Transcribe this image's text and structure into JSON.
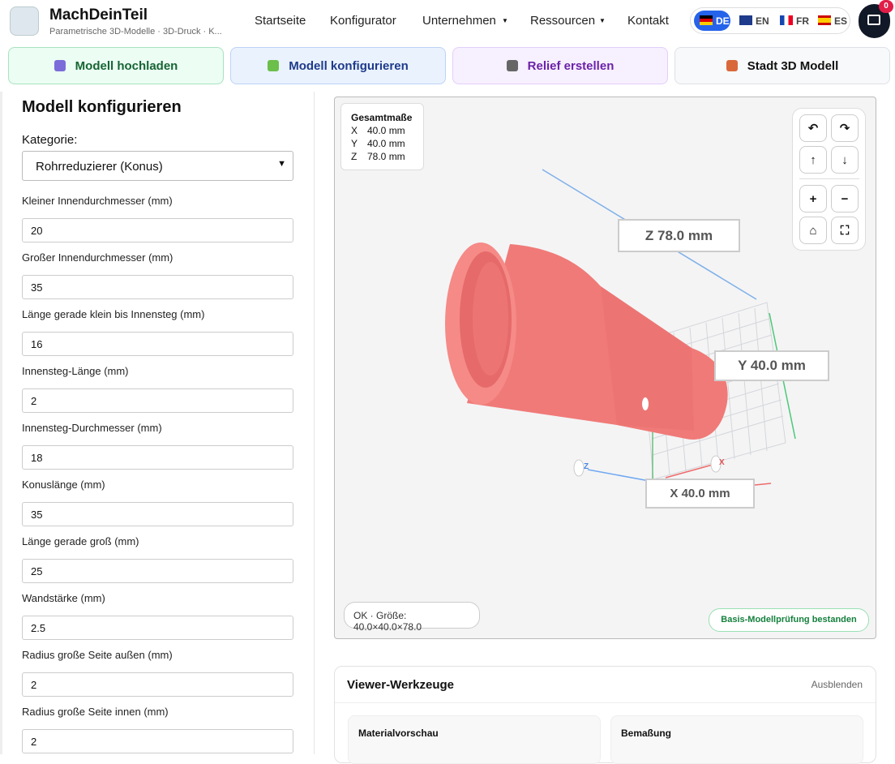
{
  "header": {
    "brand": "MachDeinTeil",
    "tagline": "Parametrische 3D-Modelle · 3D-Druck · K...",
    "nav": [
      "Startseite",
      "Konfigurator",
      "Unternehmen",
      "Ressourcen",
      "Kontakt"
    ],
    "languages": [
      "DE",
      "EN",
      "FR",
      "ES"
    ],
    "cart_count": "0"
  },
  "tabs": [
    "Modell hochladen",
    "Modell konfigurieren",
    "Relief erstellen",
    "Stadt 3D Modell"
  ],
  "form": {
    "title": "Modell konfigurieren",
    "category_label": "Kategorie:",
    "category": "Rohrreduzierer (Konus)",
    "fields": [
      {
        "label": "Kleiner Innendurchmesser (mm)",
        "value": "20"
      },
      {
        "label": "Großer Innendurchmesser (mm)",
        "value": "35"
      },
      {
        "label": "Länge gerade klein bis Innensteg (mm)",
        "value": "16"
      },
      {
        "label": "Innensteg-Länge (mm)",
        "value": "2"
      },
      {
        "label": "Innensteg-Durchmesser (mm)",
        "value": "18"
      },
      {
        "label": "Konuslänge (mm)",
        "value": "35"
      },
      {
        "label": "Länge gerade groß (mm)",
        "value": "25"
      },
      {
        "label": "Wandstärke (mm)",
        "value": "2.5"
      },
      {
        "label": "Radius große Seite außen (mm)",
        "value": "2"
      },
      {
        "label": "Radius große Seite innen (mm)",
        "value": "2"
      }
    ]
  },
  "viewer": {
    "dims_title": "Gesamtmaße",
    "dims": [
      {
        "axis": "X",
        "value": "40.0 mm"
      },
      {
        "axis": "Y",
        "value": "40.0 mm"
      },
      {
        "axis": "Z",
        "value": "78.0 mm"
      }
    ],
    "labels": {
      "z": "Z 78.0 mm",
      "y": "Y 40.0 mm",
      "x": "X 40.0 mm"
    },
    "axis_z": "Z",
    "axis_x": "X",
    "controls": [
      "↶",
      "↷",
      "↑",
      "↓",
      "+",
      "−",
      "⌂",
      "⛶"
    ],
    "status": "OK · Größe: 40.0×40.0×78.0",
    "check": "Basis-Modellprüfung bestanden"
  },
  "tools": {
    "title": "Viewer-Werkzeuge",
    "toggle": "Ausblenden",
    "cards": [
      "Materialvorschau",
      "Bemaßung"
    ]
  }
}
